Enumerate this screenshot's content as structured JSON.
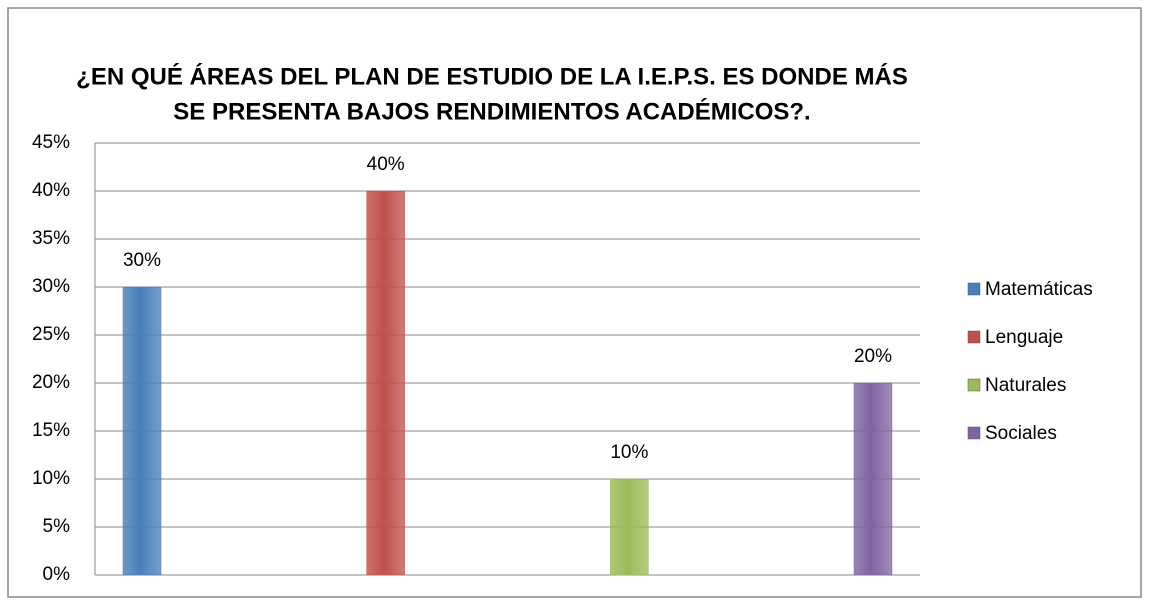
{
  "chart_data": {
    "type": "bar",
    "title": [
      "¿EN QUÉ ÁREAS DEL PLAN DE ESTUDIO DE LA I.E.P.S. ES DONDE MÁS",
      "SE PRESENTA BAJOS RENDIMIENTOS ACADÉMICOS?."
    ],
    "series": [
      {
        "name": "Matemáticas",
        "color": "#4a7ebb",
        "values": [
          30
        ],
        "value_labels": [
          "30%"
        ]
      },
      {
        "name": "Lenguaje",
        "color": "#c0504d",
        "values": [
          40
        ],
        "value_labels": [
          "40%"
        ]
      },
      {
        "name": "Naturales",
        "color": "#9bbb59",
        "values": [
          10
        ],
        "value_labels": [
          "10%"
        ]
      },
      {
        "name": "Sociales",
        "color": "#8064a2",
        "values": [
          20
        ],
        "value_labels": [
          "20%"
        ]
      }
    ],
    "ylim": [
      0,
      45
    ],
    "yticks": [
      {
        "value": 0,
        "label": "0%"
      },
      {
        "value": 5,
        "label": "5%"
      },
      {
        "value": 10,
        "label": "10%"
      },
      {
        "value": 15,
        "label": "15%"
      },
      {
        "value": 20,
        "label": "20%"
      },
      {
        "value": 25,
        "label": "25%"
      },
      {
        "value": 30,
        "label": "30%"
      },
      {
        "value": 35,
        "label": "35%"
      },
      {
        "value": 40,
        "label": "40%"
      },
      {
        "value": 45,
        "label": "45%"
      }
    ],
    "grid": true,
    "legend": "right"
  }
}
